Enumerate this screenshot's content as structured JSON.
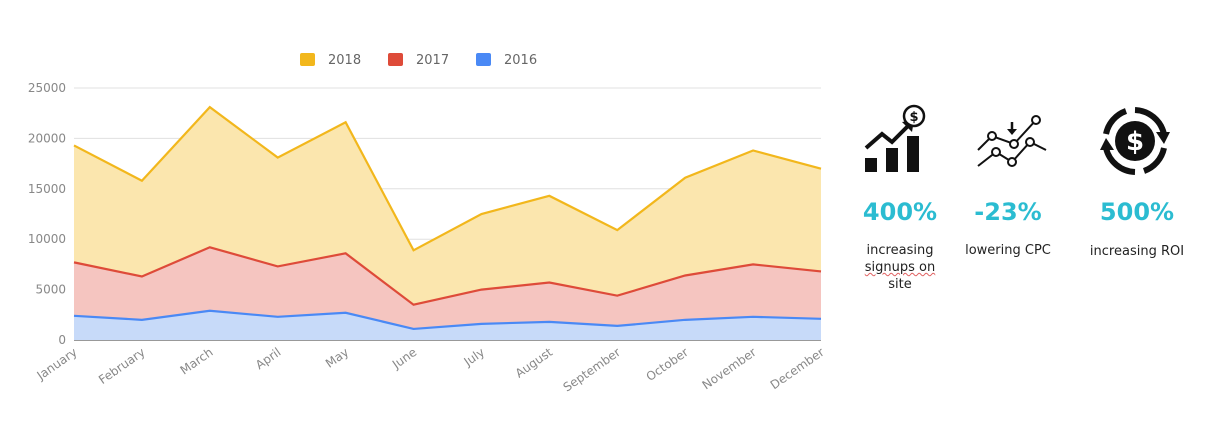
{
  "chart_data": {
    "type": "area",
    "stacked": true,
    "categories": [
      "January",
      "February",
      "March",
      "April",
      "May",
      "June",
      "July",
      "August",
      "September",
      "October",
      "November",
      "December"
    ],
    "series": [
      {
        "name": "2018",
        "color": "#f2b71c",
        "fill": "#fbe6ae",
        "values": [
          11600,
          9500,
          13900,
          10800,
          13000,
          5400,
          7500,
          8600,
          6500,
          9700,
          11300,
          10200
        ]
      },
      {
        "name": "2017",
        "color": "#de4b39",
        "fill": "#f5c5c0",
        "values": [
          5300,
          4300,
          6300,
          5000,
          5900,
          2400,
          3400,
          3900,
          3000,
          4400,
          5200,
          4700
        ]
      },
      {
        "name": "2016",
        "color": "#4a89f5",
        "fill": "#c7daf9",
        "values": [
          2400,
          2000,
          2900,
          2300,
          2700,
          1100,
          1600,
          1800,
          1400,
          2000,
          2300,
          2100
        ]
      }
    ],
    "yticks": [
      0,
      5000,
      10000,
      15000,
      20000,
      25000
    ],
    "ylim": [
      0,
      25000
    ],
    "legend_position": "top",
    "grid": true
  },
  "kpis": [
    {
      "icon": "growth-chart-dollar-icon",
      "value": "400%",
      "label_lines": [
        "increasing",
        "signups on",
        "site"
      ]
    },
    {
      "icon": "cpc-trend-icon",
      "value": "-23%",
      "label_lines": [
        "lowering CPC"
      ]
    },
    {
      "icon": "roi-cycle-dollar-icon",
      "value": "500%",
      "label_lines": [
        "increasing ROI"
      ]
    }
  ],
  "colors": {
    "accent": "#2bbcd1"
  }
}
